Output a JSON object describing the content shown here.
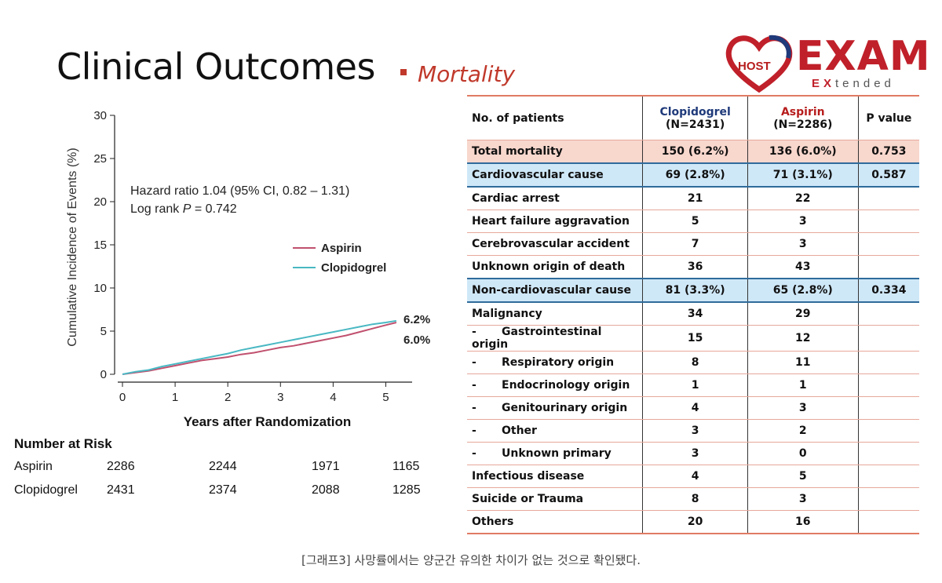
{
  "slide": {
    "title": "Clinical Outcomes",
    "subtitle": "Mortality"
  },
  "logo": {
    "host": "HOST",
    "exam": "EXAM",
    "extended_a": "EX",
    "extended_b": "tended"
  },
  "chart_data": {
    "type": "line",
    "xlabel": "Years after Randomization",
    "ylabel": "Cumulative Incidence of Events (%)",
    "xlim": [
      0,
      5.5
    ],
    "ylim": [
      0,
      30
    ],
    "x_ticks": [
      0,
      1,
      2,
      3,
      4,
      5
    ],
    "y_ticks": [
      0,
      5,
      10,
      15,
      20,
      25,
      30
    ],
    "grid": false,
    "legend_position": "center-right",
    "annotation_line1": "Hazard ratio 1.04 (95% CI, 0.82 – 1.31)",
    "annotation_line2_prefix": "Log rank ",
    "annotation_line2_italic": "P",
    "annotation_line2_suffix": " = 0.742",
    "series": [
      {
        "name": "Aspirin",
        "color": "#c0506e",
        "end_label": "6.0%",
        "x": [
          0,
          0.25,
          0.5,
          0.75,
          1.0,
          1.25,
          1.5,
          1.75,
          2.0,
          2.25,
          2.5,
          2.75,
          3.0,
          3.25,
          3.5,
          3.75,
          4.0,
          4.25,
          4.5,
          4.75,
          5.0,
          5.2
        ],
        "y": [
          0,
          0.2,
          0.4,
          0.7,
          1.0,
          1.3,
          1.6,
          1.8,
          2.0,
          2.3,
          2.5,
          2.8,
          3.1,
          3.3,
          3.6,
          3.9,
          4.2,
          4.5,
          4.9,
          5.3,
          5.7,
          6.0
        ]
      },
      {
        "name": "Clopidogrel",
        "color": "#49b8c3",
        "end_label": "6.2%",
        "x": [
          0,
          0.25,
          0.5,
          0.75,
          1.0,
          1.25,
          1.5,
          1.75,
          2.0,
          2.25,
          2.5,
          2.75,
          3.0,
          3.25,
          3.5,
          3.75,
          4.0,
          4.25,
          4.5,
          4.75,
          5.0,
          5.2
        ],
        "y": [
          0,
          0.3,
          0.5,
          0.9,
          1.2,
          1.5,
          1.8,
          2.1,
          2.4,
          2.8,
          3.1,
          3.4,
          3.7,
          4.0,
          4.3,
          4.6,
          4.9,
          5.2,
          5.5,
          5.8,
          6.0,
          6.2
        ]
      }
    ]
  },
  "risk_table": {
    "title": "Number at Risk",
    "rows": [
      {
        "label": "Aspirin",
        "values": [
          "2286",
          "2244",
          "1971",
          "1165"
        ]
      },
      {
        "label": "Clopidogrel",
        "values": [
          "2431",
          "2374",
          "2088",
          "1285"
        ]
      }
    ]
  },
  "table": {
    "header": {
      "col1": "No. of patients",
      "clop_name": "Clopidogrel",
      "clop_n": "(N=2431)",
      "asp_name": "Aspirin",
      "asp_n": "(N=2286)",
      "pval": "P value"
    },
    "rows": [
      {
        "label": "Total mortality",
        "clop": "150 (6.2%)",
        "asp": "136 (6.0%)",
        "p": "0.753",
        "style": "total"
      },
      {
        "label": "Cardiovascular cause",
        "clop": "69 (2.8%)",
        "asp": "71 (3.1%)",
        "p": "0.587",
        "style": "blue"
      },
      {
        "label": "Cardiac arrest",
        "clop": "21",
        "asp": "22",
        "p": ""
      },
      {
        "label": "Heart failure aggravation",
        "clop": "5",
        "asp": "3",
        "p": ""
      },
      {
        "label": "Cerebrovascular accident",
        "clop": "7",
        "asp": "3",
        "p": ""
      },
      {
        "label": "Unknown origin of death",
        "clop": "36",
        "asp": "43",
        "p": ""
      },
      {
        "label": "Non-cardiovascular cause",
        "clop": "81 (3.3%)",
        "asp": "65 (2.8%)",
        "p": "0.334",
        "style": "blue"
      },
      {
        "label": "Malignancy",
        "clop": "34",
        "asp": "29",
        "p": ""
      },
      {
        "label": "Gastrointestinal origin",
        "clop": "15",
        "asp": "12",
        "p": "",
        "sub": true
      },
      {
        "label": "Respiratory origin",
        "clop": "8",
        "asp": "11",
        "p": "",
        "sub": true
      },
      {
        "label": "Endocrinology origin",
        "clop": "1",
        "asp": "1",
        "p": "",
        "sub": true
      },
      {
        "label": "Genitourinary origin",
        "clop": "4",
        "asp": "3",
        "p": "",
        "sub": true
      },
      {
        "label": "Other",
        "clop": "3",
        "asp": "2",
        "p": "",
        "sub": true
      },
      {
        "label": "Unknown primary",
        "clop": "3",
        "asp": "0",
        "p": "",
        "sub": true
      },
      {
        "label": "Infectious disease",
        "clop": "4",
        "asp": "5",
        "p": ""
      },
      {
        "label": "Suicide or Trauma",
        "clop": "8",
        "asp": "3",
        "p": ""
      },
      {
        "label": "Others",
        "clop": "20",
        "asp": "16",
        "p": "",
        "style": "bottom"
      }
    ]
  },
  "caption": "[그래프3] 사망률에서는 양군간 유의한 차이가 없는 것으로 확인됐다.",
  "colors": {
    "accent_red": "#c0392b",
    "table_blue": "#cfe8f8",
    "table_pink": "#f8d7cd"
  }
}
